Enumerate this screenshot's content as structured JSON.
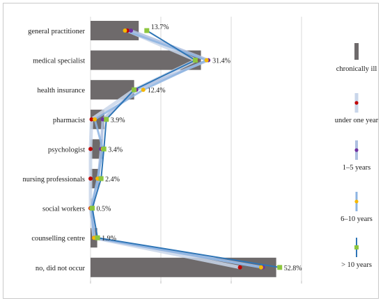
{
  "chart_data": {
    "type": "bar",
    "orientation": "horizontal",
    "categories": [
      "general practitioner",
      "medical specialist",
      "health insurance",
      "pharmacist",
      "psychologist",
      "nursing professionals",
      "social workers",
      "counselling centre",
      "no, did not occur"
    ],
    "value_labels": [
      "13.7%",
      "31.4%",
      "12.4%",
      "3.9%",
      "3.4%",
      "2.4%",
      "0.5%",
      "1.9%",
      "52.8%"
    ],
    "xlim": [
      0,
      60
    ],
    "grid": true,
    "legend": "right",
    "bar_series": {
      "name": "chronically ill",
      "color": "#6e6a6b",
      "values": [
        13.7,
        31.4,
        12.4,
        3.9,
        3.4,
        2.4,
        0.5,
        1.9,
        52.8
      ]
    },
    "line_series": [
      {
        "name": "under one year",
        "line_color": "#c9d6ea",
        "marker_color": "#c00000",
        "values": [
          10.5,
          30.0,
          12.5,
          0.3,
          0.0,
          0.0,
          0.0,
          1.0,
          42.5
        ]
      },
      {
        "name": "1–5 years",
        "line_color": "#aebfe0",
        "marker_color": "#7030a0",
        "values": [
          11.5,
          33.5,
          13.0,
          3.5,
          3.0,
          2.2,
          0.5,
          1.0,
          49.0
        ]
      },
      {
        "name": "6–10 years",
        "line_color": "#8db4e2",
        "marker_color": "#f5b800",
        "values": [
          9.8,
          33.0,
          15.0,
          1.2,
          3.5,
          2.0,
          0.2,
          1.0,
          48.5
        ]
      },
      {
        "name": "> 10 years",
        "line_color": "#2e75b6",
        "marker_color": "#8dc63f",
        "values": [
          16.0,
          29.8,
          12.4,
          4.5,
          3.8,
          3.0,
          0.5,
          2.0,
          53.8
        ]
      }
    ]
  }
}
